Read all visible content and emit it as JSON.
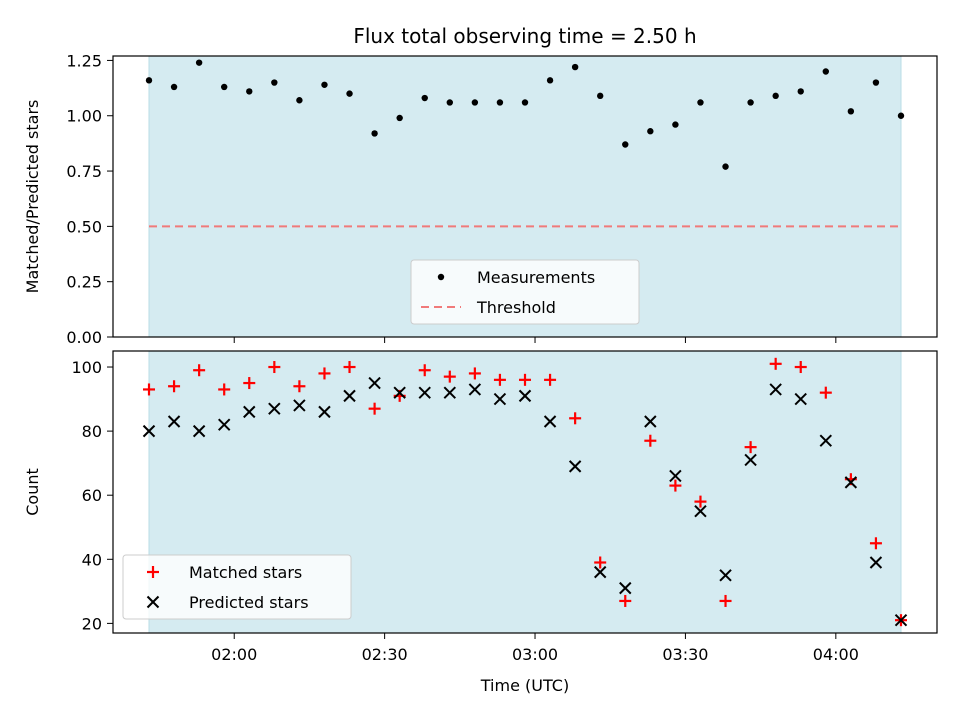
{
  "chart_data": [
    {
      "type": "scatter",
      "title": "Flux total observing time = 2.50 h",
      "xlabel": "",
      "ylabel": "Matched/Predicted stars",
      "ylim": [
        0,
        1.27
      ],
      "yticks": [
        "0.00",
        "0.25",
        "0.50",
        "0.75",
        "1.00",
        "1.25"
      ],
      "shaded_region_color": "#d5ebf1",
      "legend_position": "lower-center",
      "series": [
        {
          "name": "Measurements",
          "marker": "dot",
          "color": "#000000",
          "points": [
            [
              "01:43",
              1.16
            ],
            [
              "01:48",
              1.13
            ],
            [
              "01:53",
              1.24
            ],
            [
              "01:58",
              1.13
            ],
            [
              "02:03",
              1.11
            ],
            [
              "02:08",
              1.15
            ],
            [
              "02:13",
              1.07
            ],
            [
              "02:18",
              1.14
            ],
            [
              "02:23",
              1.1
            ],
            [
              "02:28",
              0.92
            ],
            [
              "02:33",
              0.99
            ],
            [
              "02:38",
              1.08
            ],
            [
              "02:43",
              1.06
            ],
            [
              "02:48",
              1.06
            ],
            [
              "02:53",
              1.06
            ],
            [
              "02:58",
              1.06
            ],
            [
              "03:03",
              1.16
            ],
            [
              "03:08",
              1.22
            ],
            [
              "03:13",
              1.09
            ],
            [
              "03:18",
              0.87
            ],
            [
              "03:23",
              0.93
            ],
            [
              "03:28",
              0.96
            ],
            [
              "03:33",
              1.06
            ],
            [
              "03:38",
              0.77
            ],
            [
              "03:43",
              1.06
            ],
            [
              "03:48",
              1.09
            ],
            [
              "03:53",
              1.11
            ],
            [
              "03:58",
              1.2
            ],
            [
              "04:03",
              1.02
            ],
            [
              "04:08",
              1.15
            ],
            [
              "04:13",
              1.0
            ]
          ]
        },
        {
          "name": "Threshold",
          "line": "dashed",
          "color": "#f07a7a",
          "value": 0.5
        }
      ]
    },
    {
      "type": "scatter",
      "xlabel": "Time (UTC)",
      "ylabel": "Count",
      "ylim": [
        17,
        105
      ],
      "yticks": [
        "20",
        "40",
        "60",
        "80",
        "100"
      ],
      "xticks": [
        "02:00",
        "02:30",
        "03:00",
        "03:30",
        "04:00"
      ],
      "shaded_region_color": "#d5ebf1",
      "legend_position": "lower-left",
      "series": [
        {
          "name": "Matched stars",
          "marker": "plus",
          "color": "#ff0000",
          "points": [
            [
              "01:43",
              93
            ],
            [
              "01:48",
              94
            ],
            [
              "01:53",
              99
            ],
            [
              "01:58",
              93
            ],
            [
              "02:03",
              95
            ],
            [
              "02:08",
              100
            ],
            [
              "02:13",
              94
            ],
            [
              "02:18",
              98
            ],
            [
              "02:23",
              100
            ],
            [
              "02:28",
              87
            ],
            [
              "02:33",
              91
            ],
            [
              "02:38",
              99
            ],
            [
              "02:43",
              97
            ],
            [
              "02:48",
              98
            ],
            [
              "02:53",
              96
            ],
            [
              "02:58",
              96
            ],
            [
              "03:03",
              96
            ],
            [
              "03:08",
              84
            ],
            [
              "03:13",
              39
            ],
            [
              "03:18",
              27
            ],
            [
              "03:23",
              77
            ],
            [
              "03:28",
              63
            ],
            [
              "03:33",
              58
            ],
            [
              "03:38",
              27
            ],
            [
              "03:43",
              75
            ],
            [
              "03:48",
              101
            ],
            [
              "03:53",
              100
            ],
            [
              "03:58",
              92
            ],
            [
              "04:03",
              65
            ],
            [
              "04:08",
              45
            ],
            [
              "04:13",
              21
            ]
          ]
        },
        {
          "name": "Predicted stars",
          "marker": "x",
          "color": "#000000",
          "points": [
            [
              "01:43",
              80
            ],
            [
              "01:48",
              83
            ],
            [
              "01:53",
              80
            ],
            [
              "01:58",
              82
            ],
            [
              "02:03",
              86
            ],
            [
              "02:08",
              87
            ],
            [
              "02:13",
              88
            ],
            [
              "02:18",
              86
            ],
            [
              "02:23",
              91
            ],
            [
              "02:28",
              95
            ],
            [
              "02:33",
              92
            ],
            [
              "02:38",
              92
            ],
            [
              "02:43",
              92
            ],
            [
              "02:48",
              93
            ],
            [
              "02:53",
              90
            ],
            [
              "02:58",
              91
            ],
            [
              "03:03",
              83
            ],
            [
              "03:08",
              69
            ],
            [
              "03:13",
              36
            ],
            [
              "03:18",
              31
            ],
            [
              "03:23",
              83
            ],
            [
              "03:28",
              66
            ],
            [
              "03:33",
              55
            ],
            [
              "03:38",
              35
            ],
            [
              "03:43",
              71
            ],
            [
              "03:48",
              93
            ],
            [
              "03:53",
              90
            ],
            [
              "03:58",
              77
            ],
            [
              "04:03",
              64
            ],
            [
              "04:08",
              39
            ],
            [
              "04:13",
              21
            ]
          ]
        }
      ]
    }
  ]
}
